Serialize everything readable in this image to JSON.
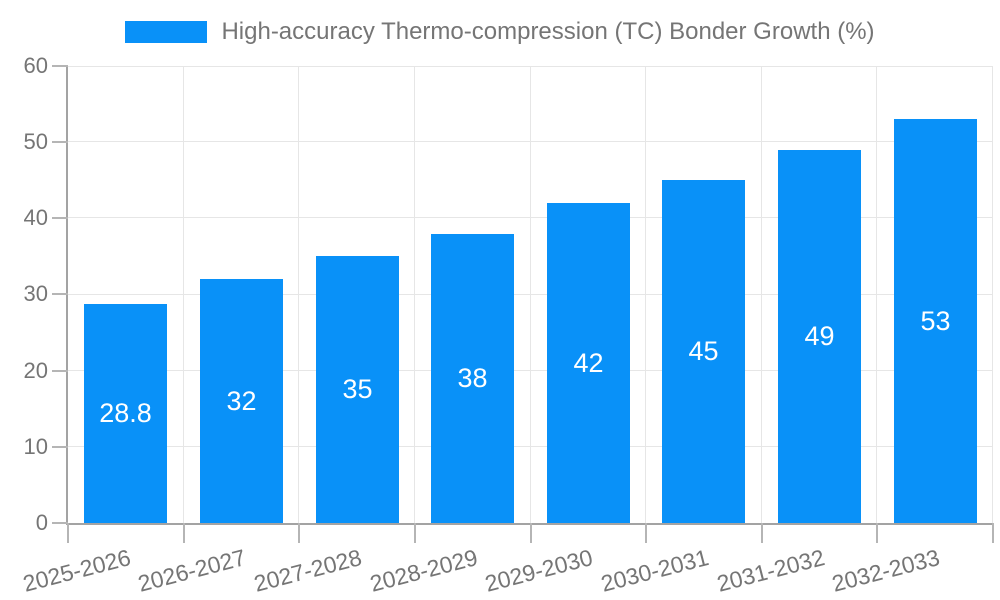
{
  "chart_data": {
    "type": "bar",
    "title": "",
    "legend": "High-accuracy Thermo-compression (TC) Bonder Growth (%)",
    "legend_position": "top",
    "categories": [
      "2025-2026",
      "2026-2027",
      "2027-2028",
      "2028-2029",
      "2029-2030",
      "2030-2031",
      "2031-2032",
      "2032-2033"
    ],
    "values": [
      28.8,
      32,
      35,
      38,
      42,
      45,
      49,
      53
    ],
    "value_labels": [
      "28.8",
      "32",
      "35",
      "38",
      "42",
      "45",
      "49",
      "53"
    ],
    "xlabel": "",
    "ylabel": "",
    "ylim": [
      0,
      60
    ],
    "yticks": [
      0,
      10,
      20,
      30,
      40,
      50,
      60
    ],
    "ytick_labels": [
      "0",
      "10",
      "20",
      "30",
      "40",
      "50",
      "60"
    ],
    "grid": true
  },
  "colors": {
    "bar": "#0991f8",
    "axis": "#a3a3a3",
    "grid": "#e6e6e6",
    "tick": "#b5b5b5",
    "label": "#757575",
    "value_label": "#ffffff",
    "background": "#ffffff"
  }
}
